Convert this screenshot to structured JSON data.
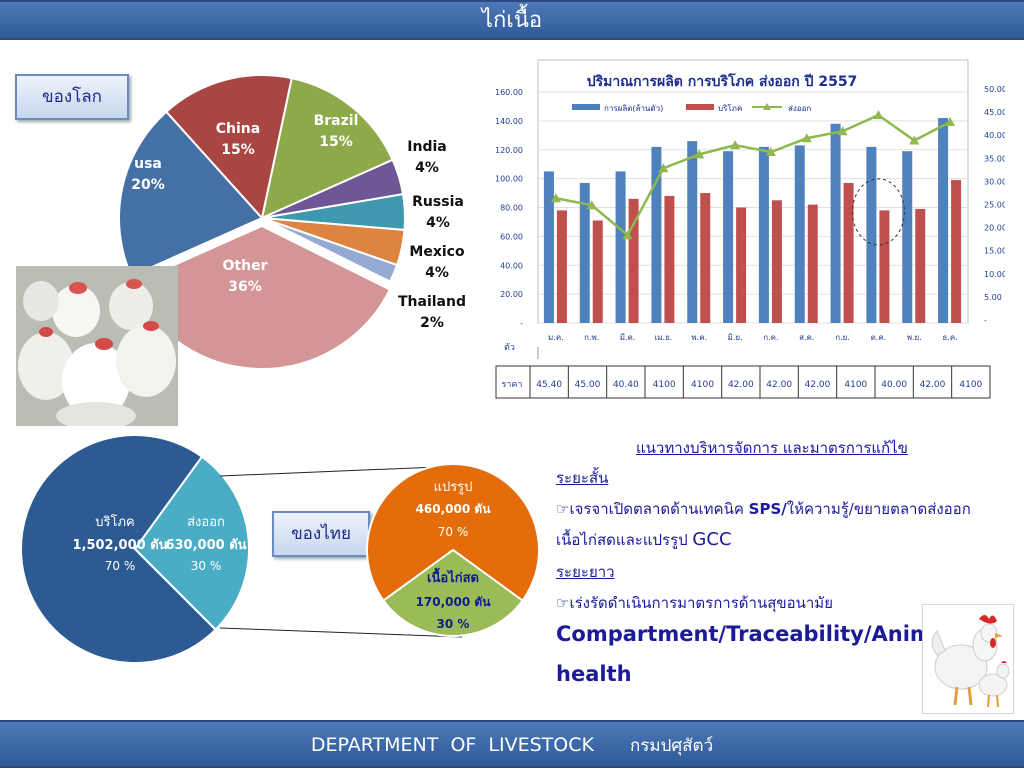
{
  "header": {
    "title": "ไก่เนื้อ"
  },
  "footer": {
    "org_en": "DEPARTMENT  OF  LIVESTOCK",
    "org_th": "กรมปศุสัตว์"
  },
  "world_tag": "ของโลก",
  "thai_tag": "ของไทย",
  "world_labels": {
    "brazil": [
      "Brazil",
      "15%"
    ],
    "china": [
      "China",
      "15%"
    ],
    "usa": [
      "usa",
      "20%"
    ],
    "other": [
      "Other",
      "36%"
    ],
    "india": [
      "India",
      "4%"
    ],
    "russia": [
      "Russia",
      "4%"
    ],
    "mexico": [
      "Mexico",
      "4%"
    ],
    "thailand": [
      "Thailand",
      "2%"
    ]
  },
  "thai_labels": {
    "consume": [
      "บริโภค",
      "1,502,000 ตัน",
      "70 %"
    ],
    "export": [
      "ส่งออก",
      "630,000 ตัน",
      "30 %"
    ],
    "processed": [
      "แปรรูป",
      "460,000 ตัน",
      "70 %"
    ],
    "fresh": [
      "เนื้อไก่สด",
      "170,000 ตัน",
      "30 %"
    ]
  },
  "combo": {
    "title": "ปริมาณการผลิต การบริโภค ส่งออก  ปี 2557",
    "legend": [
      "การผลิต(ล้านตัว)",
      "บริโภค",
      "ส่งออก"
    ],
    "unit_label": "ตัว",
    "price_label": "ราคา",
    "left_ticks": [
      "160.00",
      "140.00",
      "120.00",
      "100.00",
      "80.00",
      "60.00",
      "40.00",
      "20.00",
      "-"
    ],
    "right_ticks": [
      "50.00",
      "45.00",
      "40.00",
      "35.00",
      "30.00",
      "25.00",
      "20.00",
      "15.00",
      "10.00",
      "5.00",
      "-"
    ],
    "prices": [
      "45.40",
      "45.00",
      "40.40",
      "4100",
      "4100",
      "42.00",
      "42.00",
      "42.00",
      "4100",
      "40.00",
      "42.00",
      "4100"
    ]
  },
  "notes": {
    "title": "แนวทางบริหารจัดการ และมาตรการแก้ไข",
    "short_head": "ระยะสั้น",
    "short_item_pre": "เจรจาเปิดตลาดด้านเทคนิค ",
    "short_item_sps": "SPS/",
    "short_item_post": "ให้ความรู้/ขยายตลาดส่งออก",
    "short_item2_pre": "เนื้อไก่สดและแปรรูป ",
    "short_item2_gcc": "GCC",
    "long_head": "ระยะยาว",
    "long_item": "เร่งรัดดำเนินการมาตรการด้านสุขอนามัย",
    "big1": "Compartment/Traceability/Animal",
    "big2": "health"
  },
  "colors": {
    "usa": "#4470a6",
    "china": "#a94644",
    "brazil": "#8ea94a",
    "india": "#6d5797",
    "russia": "#3f98ad",
    "mexico": "#dd8441",
    "thailand": "#95aad2",
    "other": "#d39596",
    "prod": "#4f81bd",
    "cons": "#c0504d",
    "exp": "#8fb84e",
    "dark_blue": "#2c5a92",
    "light_blue": "#4bacc6",
    "orange": "#e46c0a",
    "green": "#9bbb59"
  },
  "chart_data": [
    {
      "type": "pie",
      "title": "",
      "labels": [
        "Brazil",
        "India",
        "Russia",
        "Mexico",
        "Thailand",
        "Other",
        "usa",
        "China"
      ],
      "values": [
        15,
        4,
        4,
        4,
        2,
        36,
        20,
        15
      ]
    },
    {
      "type": "bar",
      "title": "ปริมาณการผลิต การบริโภค ส่งออก  ปี 2557",
      "categories": [
        "ม.ค.",
        "ก.พ.",
        "มี.ค.",
        "เม.ย.",
        "พ.ค.",
        "มิ.ย.",
        "ก.ค.",
        "ส.ค.",
        "ก.ย.",
        "ต.ค.",
        "พ.ย.",
        "ธ.ค."
      ],
      "series": [
        {
          "name": "การผลิต(ล้านตัว)",
          "type": "bar",
          "axis": "left",
          "values": [
            105,
            97,
            105,
            122,
            126,
            119,
            122,
            123,
            138,
            122,
            119,
            142
          ]
        },
        {
          "name": "บริโภค",
          "type": "bar",
          "axis": "left",
          "values": [
            78,
            71,
            86,
            88,
            90,
            80,
            85,
            82,
            97,
            78,
            79,
            99
          ]
        },
        {
          "name": "ส่งออก",
          "type": "line",
          "axis": "right",
          "values": [
            27,
            25.5,
            19,
            33.5,
            36.5,
            38.5,
            37,
            40,
            41.5,
            45,
            39.5,
            43.5
          ]
        }
      ],
      "ylim_left": [
        0,
        160
      ],
      "ylim_right": [
        0,
        50
      ],
      "xlabel": "",
      "ylabel": ""
    },
    {
      "type": "pie",
      "title": "",
      "labels": [
        "บริโภค",
        "ส่งออก"
      ],
      "values": [
        70,
        30
      ]
    },
    {
      "type": "pie",
      "title": "",
      "labels": [
        "แปรรูป",
        "เนื้อไก่สด"
      ],
      "values": [
        70,
        30
      ]
    }
  ]
}
